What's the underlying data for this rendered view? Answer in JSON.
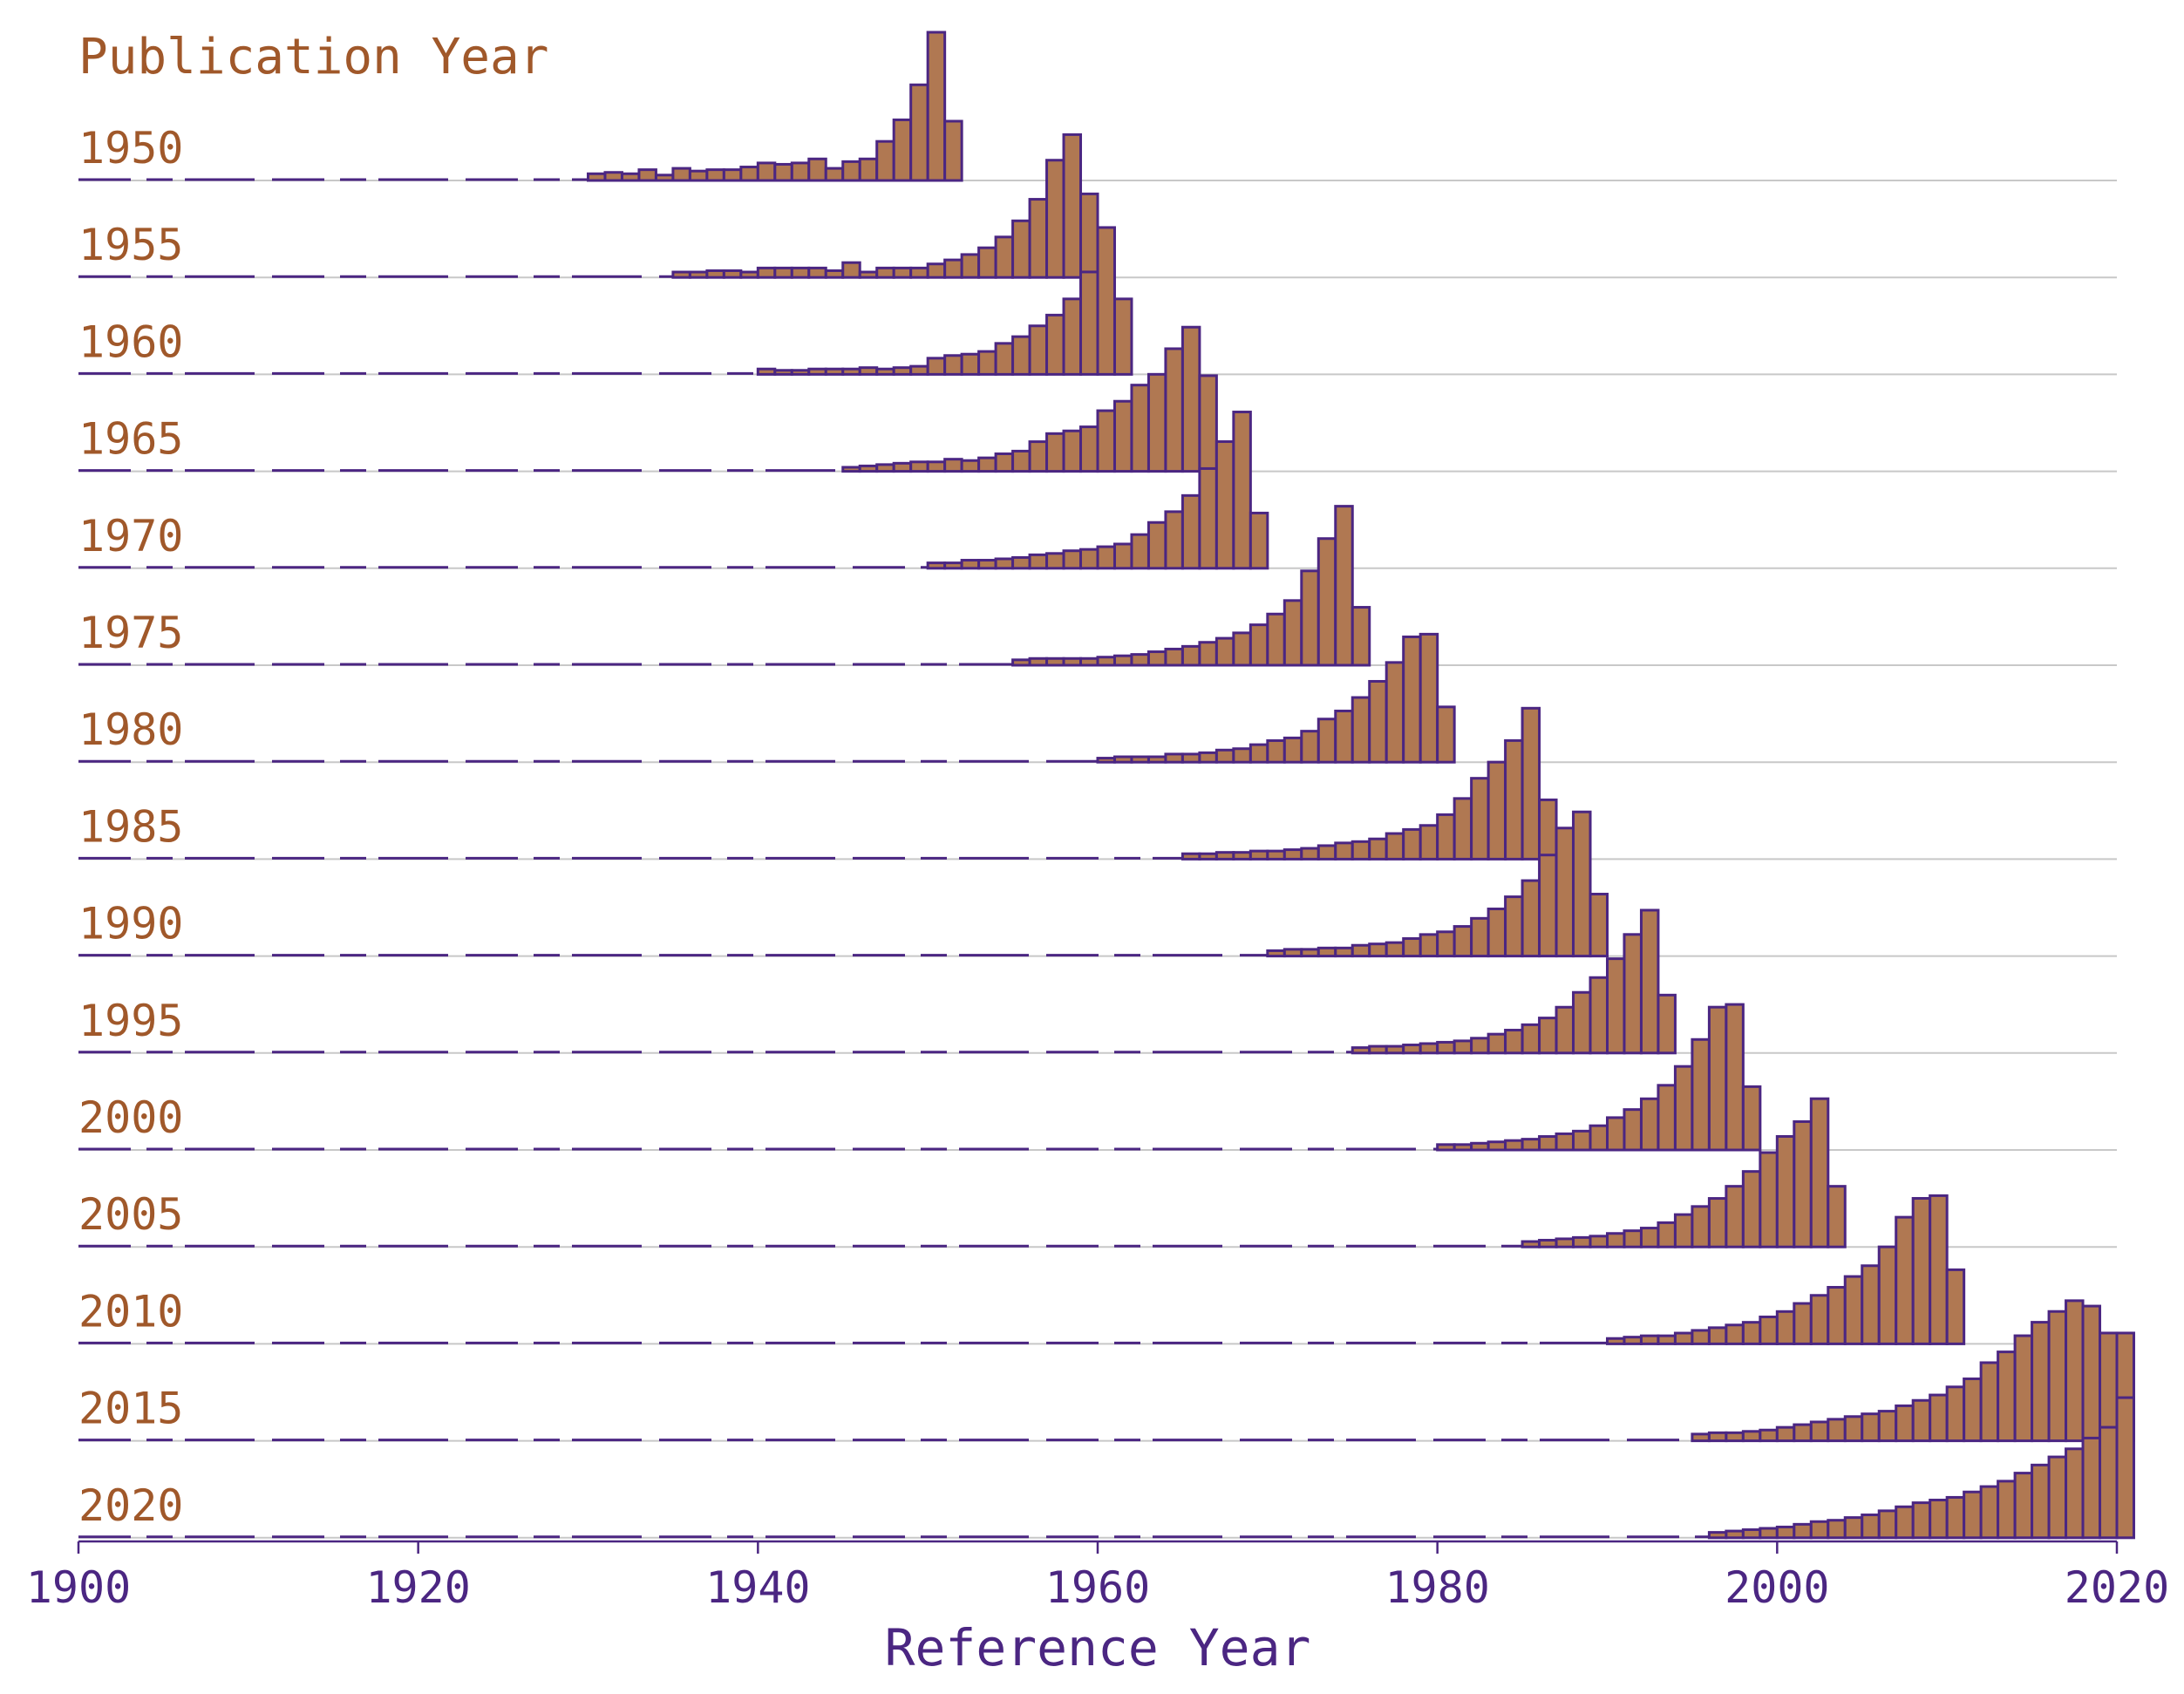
{
  "chart_data": {
    "type": "bar",
    "title": "Publication Year",
    "xlabel": "Reference Year",
    "xlim": [
      1900,
      2020
    ],
    "x_ticks": [
      "1900",
      "1920",
      "1940",
      "1960",
      "1980",
      "2000",
      "2020"
    ],
    "bin_width_years": 1,
    "ylim_per_row": [
      0,
      110
    ],
    "colors": {
      "bar_fill": "#b07852",
      "bar_edge": "#4b2682",
      "label": "#a0582a",
      "axis": "#4b2682",
      "baseline": "#c8c8c8"
    },
    "series": [
      {
        "name": "1950",
        "start_year": 1930,
        "values": [
          5,
          6,
          5,
          8,
          4,
          9,
          7,
          8,
          8,
          10,
          13,
          12,
          13,
          16,
          9,
          14,
          16,
          29,
          45,
          71,
          110,
          44
        ]
      },
      {
        "name": "1955",
        "start_year": 1935,
        "values": [
          4,
          4,
          5,
          5,
          4,
          7,
          7,
          7,
          7,
          5,
          11,
          4,
          7,
          7,
          7,
          10,
          13,
          17,
          22,
          30,
          42,
          58,
          87,
          106,
          62
        ]
      },
      {
        "name": "1960",
        "start_year": 1940,
        "values": [
          4,
          3,
          3,
          4,
          4,
          4,
          5,
          4,
          5,
          6,
          12,
          14,
          15,
          17,
          23,
          28,
          36,
          44,
          56,
          76,
          109,
          56
        ]
      },
      {
        "name": "1965",
        "start_year": 1945,
        "values": [
          3,
          4,
          5,
          6,
          7,
          7,
          9,
          8,
          10,
          13,
          15,
          22,
          28,
          30,
          33,
          45,
          52,
          64,
          72,
          91,
          107,
          71
        ]
      },
      {
        "name": "1970",
        "start_year": 1950,
        "values": [
          4,
          4,
          6,
          6,
          7,
          8,
          10,
          11,
          13,
          14,
          16,
          18,
          25,
          34,
          42,
          54,
          74,
          94,
          116,
          41
        ]
      },
      {
        "name": "1975",
        "start_year": 1955,
        "values": [
          4,
          5,
          5,
          5,
          5,
          6,
          7,
          8,
          10,
          12,
          14,
          17,
          20,
          24,
          30,
          38,
          48,
          70,
          94,
          118,
          43
        ]
      },
      {
        "name": "1980",
        "start_year": 1960,
        "values": [
          3,
          4,
          4,
          4,
          6,
          6,
          7,
          9,
          10,
          13,
          16,
          18,
          23,
          32,
          38,
          48,
          60,
          74,
          93,
          95,
          41
        ]
      },
      {
        "name": "1985",
        "start_year": 1965,
        "values": [
          4,
          4,
          5,
          5,
          6,
          6,
          7,
          8,
          10,
          12,
          13,
          15,
          19,
          22,
          25,
          33,
          45,
          60,
          72,
          88,
          112,
          44
        ]
      },
      {
        "name": "1990",
        "start_year": 1970,
        "values": [
          4,
          5,
          5,
          6,
          6,
          8,
          9,
          10,
          13,
          16,
          18,
          22,
          28,
          35,
          44,
          56,
          75,
          95,
          107,
          46
        ]
      },
      {
        "name": "1995",
        "start_year": 1975,
        "values": [
          4,
          5,
          5,
          6,
          7,
          8,
          9,
          11,
          14,
          17,
          21,
          26,
          34,
          45,
          56,
          70,
          88,
          106,
          43
        ]
      },
      {
        "name": "2000",
        "start_year": 1980,
        "values": [
          4,
          4,
          5,
          6,
          7,
          8,
          10,
          12,
          14,
          18,
          24,
          30,
          38,
          48,
          62,
          82,
          106,
          108,
          47
        ]
      },
      {
        "name": "2005",
        "start_year": 1985,
        "values": [
          4,
          5,
          6,
          7,
          8,
          10,
          12,
          14,
          18,
          24,
          30,
          36,
          45,
          56,
          70,
          82,
          93,
          110,
          45
        ]
      },
      {
        "name": "2010",
        "start_year": 1990,
        "values": [
          4,
          5,
          6,
          6,
          8,
          10,
          12,
          14,
          16,
          20,
          24,
          30,
          36,
          42,
          50,
          58,
          72,
          94,
          108,
          110,
          55
        ]
      },
      {
        "name": "2015",
        "start_year": 1995,
        "values": [
          5,
          6,
          6,
          7,
          8,
          10,
          12,
          14,
          16,
          18,
          20,
          22,
          26,
          30,
          34,
          40,
          46,
          58,
          66,
          78,
          88,
          96,
          104,
          100,
          80,
          80
        ]
      },
      {
        "name": "2020",
        "start_year": 1996,
        "values": [
          4,
          5,
          6,
          7,
          8,
          10,
          12,
          13,
          15,
          17,
          20,
          23,
          26,
          28,
          30,
          34,
          38,
          42,
          48,
          54,
          60,
          66,
          74,
          82,
          104
        ]
      }
    ]
  }
}
